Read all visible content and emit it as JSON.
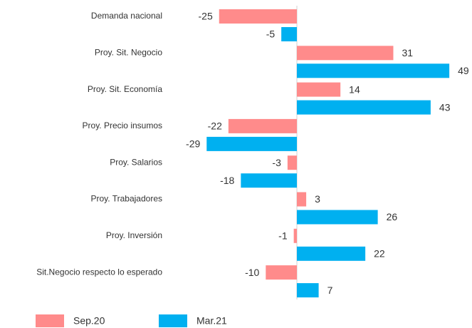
{
  "chart_data": {
    "type": "bar",
    "orientation": "horizontal",
    "categories": [
      "Demanda nacional",
      "Proy. Sit. Negocio",
      "Proy. Sit. Economía",
      "Proy. Precio insumos",
      "Proy. Salarios",
      "Proy. Trabajadores",
      "Proy. Inversión",
      "Sit.Negocio respecto lo esperado"
    ],
    "series": [
      {
        "name": "Sep.20",
        "color": "#ff8b8b",
        "values": [
          -25,
          31,
          14,
          -22,
          -3,
          3,
          -1,
          -10
        ]
      },
      {
        "name": "Mar.21",
        "color": "#00b0f0",
        "values": [
          -5,
          49,
          43,
          -29,
          -18,
          26,
          22,
          7
        ]
      }
    ],
    "legend": "bottom"
  }
}
